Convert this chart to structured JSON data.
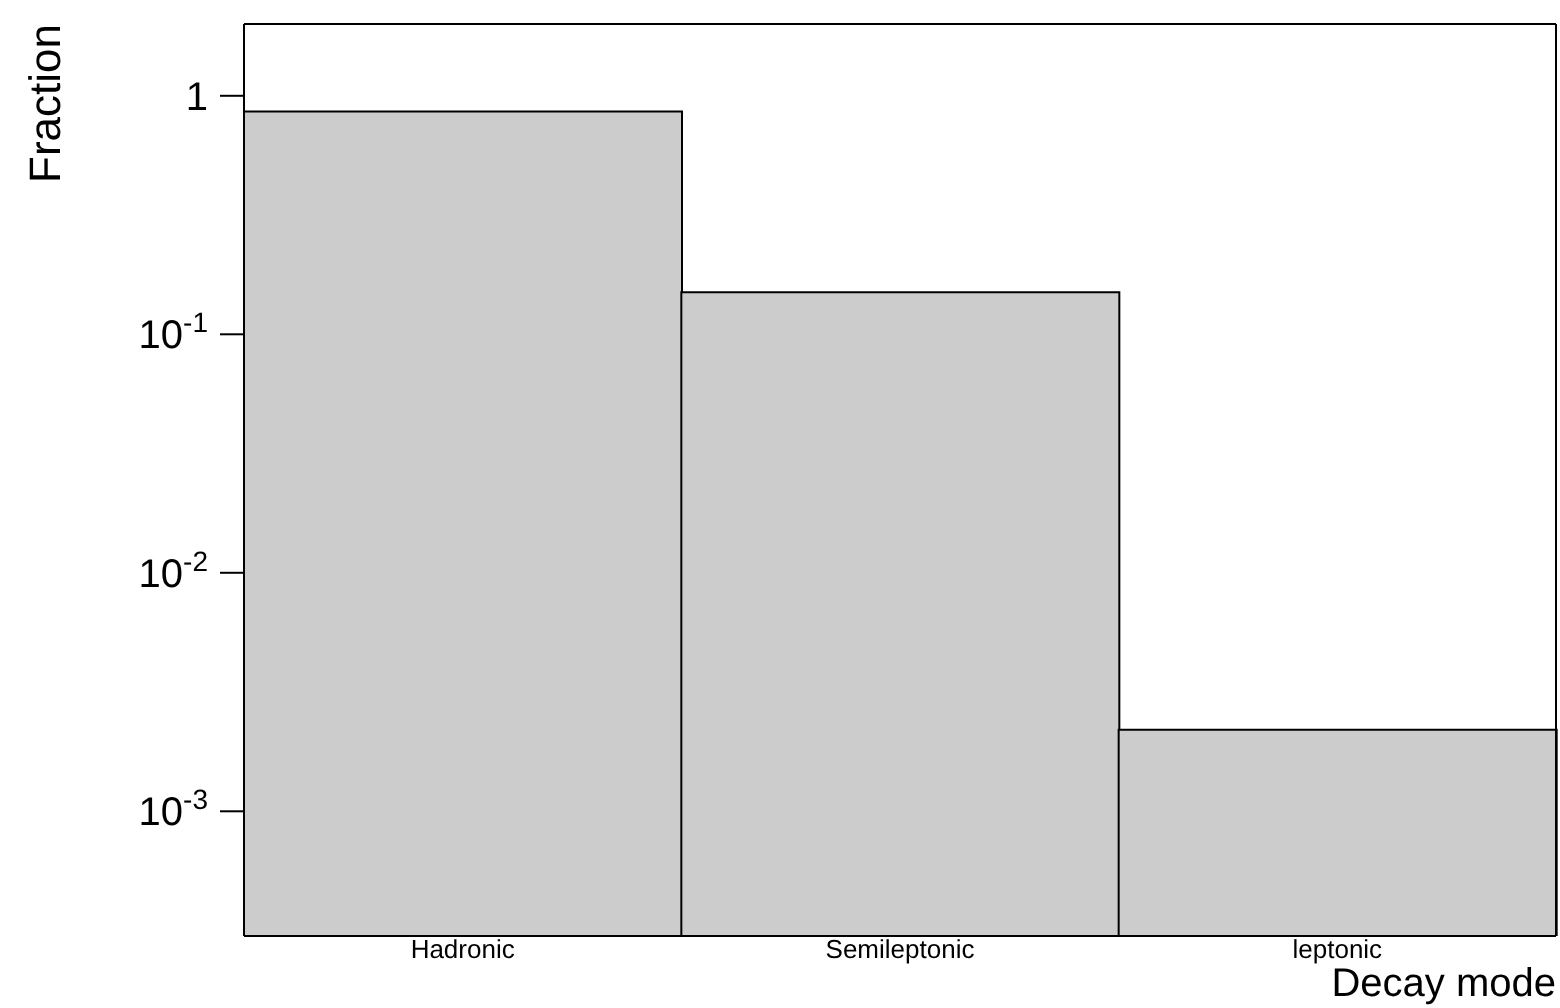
{
  "chart_data": {
    "type": "bar",
    "xlabel": "Decay mode",
    "ylabel": "Fraction",
    "categories": [
      "Hadronic",
      "Semileptonic",
      "leptonic"
    ],
    "values": [
      0.86,
      0.15,
      0.0022
    ],
    "color": "#cccccc",
    "log": true,
    "ylim": [
      0.0003,
      2
    ],
    "yticks": [
      {
        "value": 0.001,
        "label": "10$^{-3}$"
      },
      {
        "value": 0.01,
        "label": "10$^{-2}$"
      },
      {
        "value": 0.1,
        "label": "10$^{-1}$"
      },
      1
    ],
    "grid": false,
    "legend": false
  }
}
